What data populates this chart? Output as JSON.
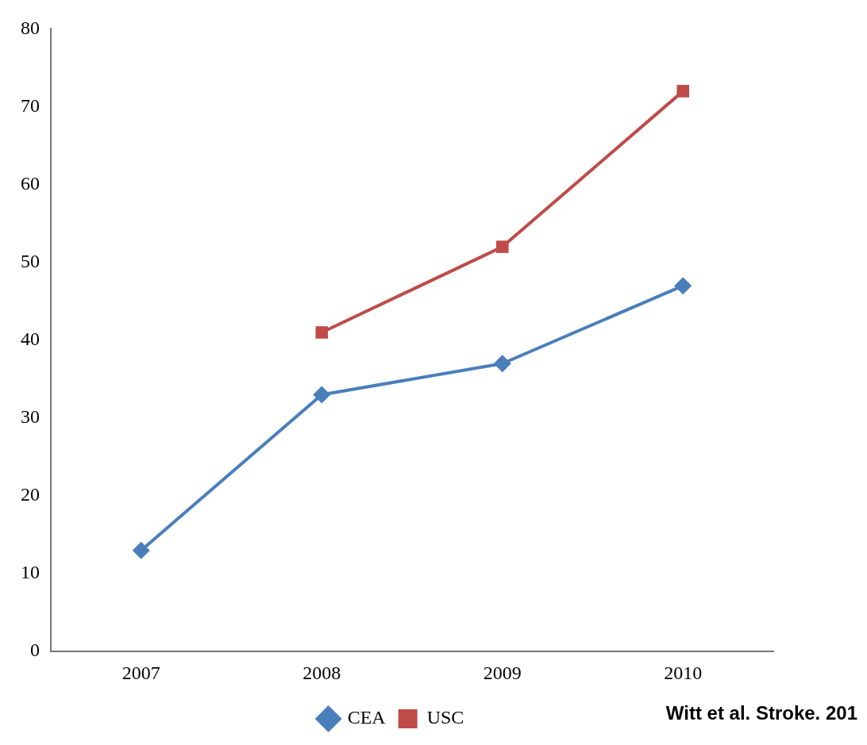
{
  "chart_data": {
    "type": "line",
    "categories": [
      "2007",
      "2008",
      "2009",
      "2010"
    ],
    "series": [
      {
        "name": "CEA",
        "color": "#4a7ebb",
        "marker": "diamond",
        "values": [
          13,
          33,
          37,
          47
        ]
      },
      {
        "name": "USC",
        "color": "#be4b48",
        "marker": "square",
        "values": [
          null,
          41,
          52,
          72
        ]
      }
    ],
    "ylim": [
      0,
      80
    ],
    "yticks": [
      0,
      10,
      20,
      30,
      40,
      50,
      60,
      70,
      80
    ],
    "grid": false,
    "legend": "bottom",
    "annotations": [
      "Witt et al. Stroke. 201"
    ]
  }
}
